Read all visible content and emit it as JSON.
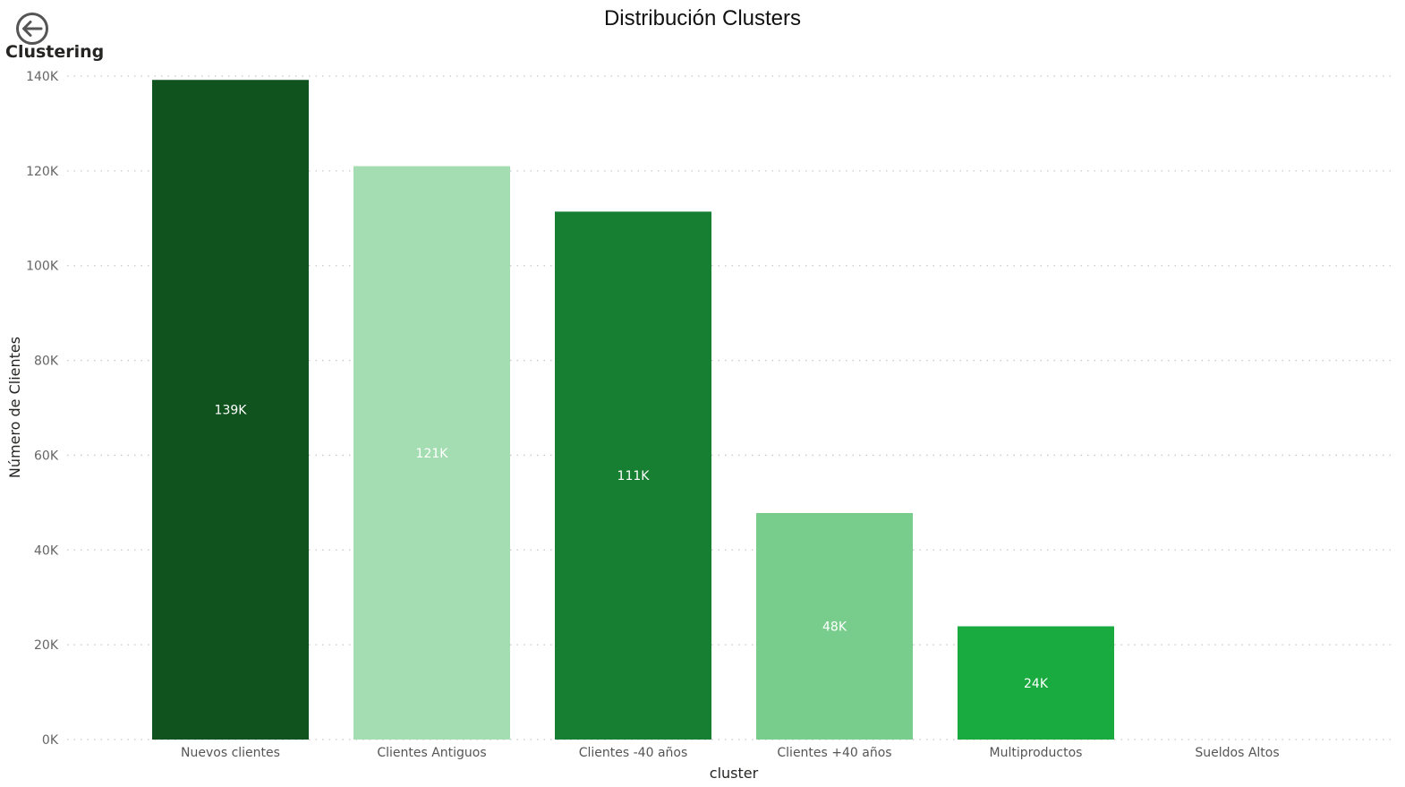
{
  "back_button": {
    "label": "Clustering",
    "icon": "back-arrow-icon"
  },
  "colors": {
    "gridline": "#c8c8c8",
    "tick_text": "#666666",
    "axis_title": "#252423"
  },
  "chart_data": {
    "type": "bar",
    "title": "Distribución Clusters",
    "xlabel": "cluster",
    "ylabel": "Número de Clientes",
    "ylim": [
      0,
      140000
    ],
    "y_ticks": [
      0,
      20000,
      40000,
      60000,
      80000,
      100000,
      120000,
      140000
    ],
    "y_tick_labels": [
      "0K",
      "20K",
      "40K",
      "60K",
      "80K",
      "100K",
      "120K",
      "140K"
    ],
    "grid": true,
    "legend": "none",
    "categories": [
      "Nuevos clientes",
      "Clientes Antiguos",
      "Clientes -40 años",
      "Clientes +40 años",
      "Multiproductos",
      "Sueldos Altos"
    ],
    "values": [
      139200,
      121000,
      111400,
      47800,
      23900,
      0
    ],
    "data_labels": [
      "139K",
      "121K",
      "111K",
      "48K",
      "24K",
      ""
    ],
    "bar_colors": [
      "#10531f",
      "#a3ddb1",
      "#177f31",
      "#78cd8c",
      "#1aab40",
      "#1aab40"
    ],
    "label_colors": [
      "#ffffff",
      "#ffffff",
      "#ffffff",
      "#ffffff",
      "#ffffff",
      "#ffffff"
    ]
  }
}
